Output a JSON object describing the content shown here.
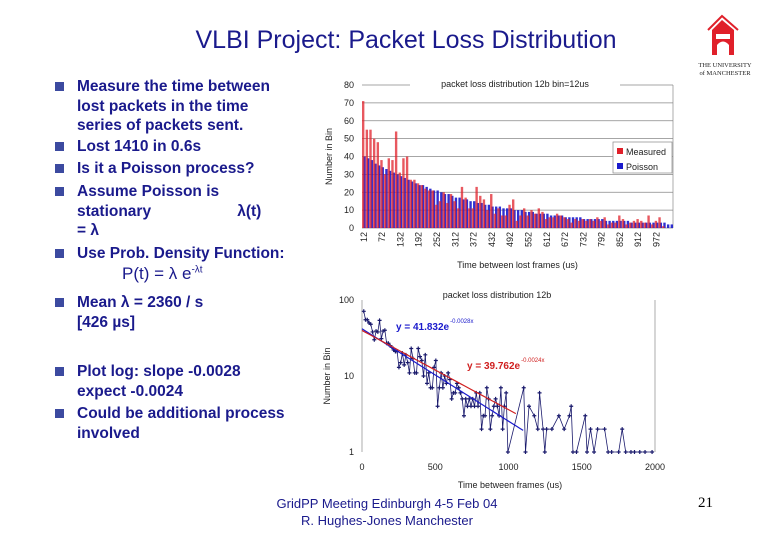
{
  "title": "VLBI Project: Packet Loss Distribution",
  "logo": {
    "text_line1": "THE UNIVERSITY",
    "text_line2": "of MANCHESTER",
    "color": "#e0202a"
  },
  "bullets": [
    {
      "text": "Measure the time between\nlost packets in the time\nseries of packets sent."
    },
    {
      "text": "Lost 1410 in 0.6s"
    },
    {
      "text": "Is it a Poisson process?"
    },
    {
      "text": "Assume Poisson is\nstationary                    λ(t)\n= λ"
    },
    {
      "text": "Use Prob. Density Function:"
    },
    {
      "text": "Mean λ = 2360 / s\n[426 µs]"
    },
    {
      "text": "Plot log: slope -0.0028\nexpect -0.0024"
    },
    {
      "text": "Could be additional process\ninvolved"
    }
  ],
  "formula": {
    "main": "P(t) = λ e",
    "exponent": "-λt"
  },
  "footer": {
    "line1": "GridPP Meeting Edinburgh 4-5 Feb 04",
    "line2": "R. Hughes-Jones  Manchester",
    "page": "21"
  },
  "chart_data": [
    {
      "type": "bar",
      "title": "packet loss distribution 12b bin=12us",
      "xlabel": "Time between lost frames (us)",
      "ylabel": "Number in Bin",
      "ylim": [
        0,
        80
      ],
      "yticks": [
        0,
        10,
        20,
        30,
        40,
        50,
        60,
        70,
        80
      ],
      "xticks": [
        "12",
        "72",
        "132",
        "192",
        "252",
        "312",
        "372",
        "432",
        "492",
        "552",
        "612",
        "672",
        "732",
        "792",
        "852",
        "912",
        "972"
      ],
      "bin_start": 12,
      "bin_width": 12,
      "grid": true,
      "legend_position": "right",
      "series": [
        {
          "name": "Measured",
          "color": "#e0202a",
          "values": [
            71,
            55,
            55,
            50,
            48,
            38,
            30,
            39,
            38,
            54,
            31,
            39,
            40,
            27,
            27,
            25,
            24,
            22,
            21,
            21,
            13,
            15,
            20,
            14,
            19,
            15,
            11,
            23,
            17,
            11,
            11,
            23,
            18,
            16,
            10,
            19,
            8,
            11,
            7,
            7,
            13,
            16,
            4,
            7,
            11,
            7,
            10,
            8,
            11,
            9,
            5,
            6,
            6,
            8,
            7,
            6,
            5,
            3,
            5,
            4,
            5,
            4,
            5,
            4,
            6,
            4,
            6,
            2,
            3,
            3,
            7,
            5,
            2,
            3,
            4,
            5,
            4,
            3,
            7,
            2,
            4,
            6,
            1,
            0,
            0
          ]
        },
        {
          "name": "Poisson",
          "color": "#1a1acc",
          "values": [
            40,
            39,
            38,
            36,
            35,
            34,
            33,
            32,
            31,
            30,
            29,
            28,
            27,
            26,
            25,
            24,
            24,
            23,
            22,
            21,
            21,
            20,
            19,
            19,
            18,
            17,
            17,
            16,
            16,
            15,
            15,
            14,
            14,
            13,
            13,
            12,
            12,
            12,
            11,
            11,
            11,
            10,
            10,
            10,
            9,
            9,
            9,
            8,
            8,
            8,
            8,
            7,
            7,
            7,
            7,
            6,
            6,
            6,
            6,
            6,
            5,
            5,
            5,
            5,
            5,
            5,
            4,
            4,
            4,
            4,
            4,
            4,
            4,
            3,
            3,
            3,
            3,
            3,
            3,
            3,
            3,
            3,
            3,
            2,
            2
          ]
        }
      ]
    },
    {
      "type": "scatter",
      "title": "packet loss distribution 12b",
      "xlabel": "Time between frames (us)",
      "ylabel": "Number in Bin",
      "xlim": [
        0,
        2000
      ],
      "ylim": [
        1,
        100
      ],
      "yscale": "log",
      "xticks": [
        0,
        500,
        1000,
        1500,
        2000
      ],
      "yticks": [
        1,
        10,
        100
      ],
      "points_color": "#1a1a6c",
      "tail_points": [
        [
          1104,
          7
        ],
        [
          1116,
          1
        ],
        [
          1140,
          4
        ],
        [
          1176,
          3
        ],
        [
          1200,
          2
        ],
        [
          1212,
          6
        ],
        [
          1236,
          2
        ],
        [
          1248,
          1
        ],
        [
          1260,
          2
        ],
        [
          1296,
          2
        ],
        [
          1344,
          3
        ],
        [
          1380,
          2
        ],
        [
          1416,
          3
        ],
        [
          1428,
          4
        ],
        [
          1440,
          1
        ],
        [
          1464,
          1
        ],
        [
          1524,
          3
        ],
        [
          1536,
          1
        ],
        [
          1560,
          2
        ],
        [
          1584,
          1
        ],
        [
          1608,
          2
        ],
        [
          1656,
          2
        ],
        [
          1680,
          1
        ],
        [
          1704,
          1
        ],
        [
          1752,
          1
        ],
        [
          1776,
          2
        ],
        [
          1800,
          1
        ],
        [
          1836,
          1
        ],
        [
          1860,
          1
        ],
        [
          1896,
          1
        ],
        [
          1932,
          1
        ],
        [
          1980,
          1
        ]
      ],
      "fits": [
        {
          "label": "y = 41.832e",
          "exponent": "-0.0028x",
          "a": 41.832,
          "b": -0.0028,
          "xmax": 1100,
          "color": "#1a1acc"
        },
        {
          "label": "y = 39.762e",
          "exponent": "-0.0024x",
          "a": 39.762,
          "b": -0.0024,
          "xmax": 1050,
          "color": "#d02020"
        }
      ]
    }
  ]
}
